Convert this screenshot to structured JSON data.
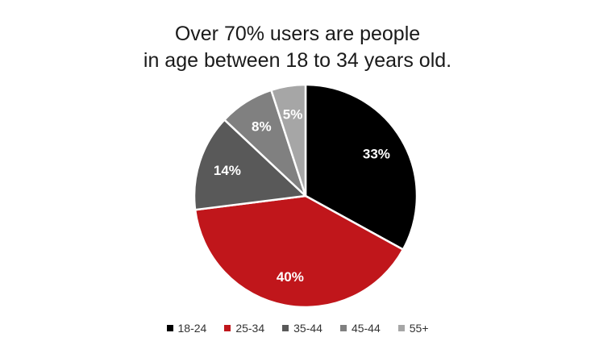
{
  "chart_data": {
    "type": "pie",
    "title_lines": [
      "Over 70% users are people",
      "in age between 18 to 34 years old."
    ],
    "categories": [
      "18-24",
      "25-34",
      "35-44",
      "45-44",
      "55+"
    ],
    "values": [
      33,
      40,
      14,
      8,
      5
    ],
    "labels": [
      "33%",
      "40%",
      "14%",
      "8%",
      "5%"
    ],
    "colors": [
      "#000000",
      "#c0161b",
      "#595959",
      "#808080",
      "#a6a6a6"
    ],
    "start": "12 o'clock",
    "direction": "clockwise",
    "legend_position": "bottom"
  }
}
